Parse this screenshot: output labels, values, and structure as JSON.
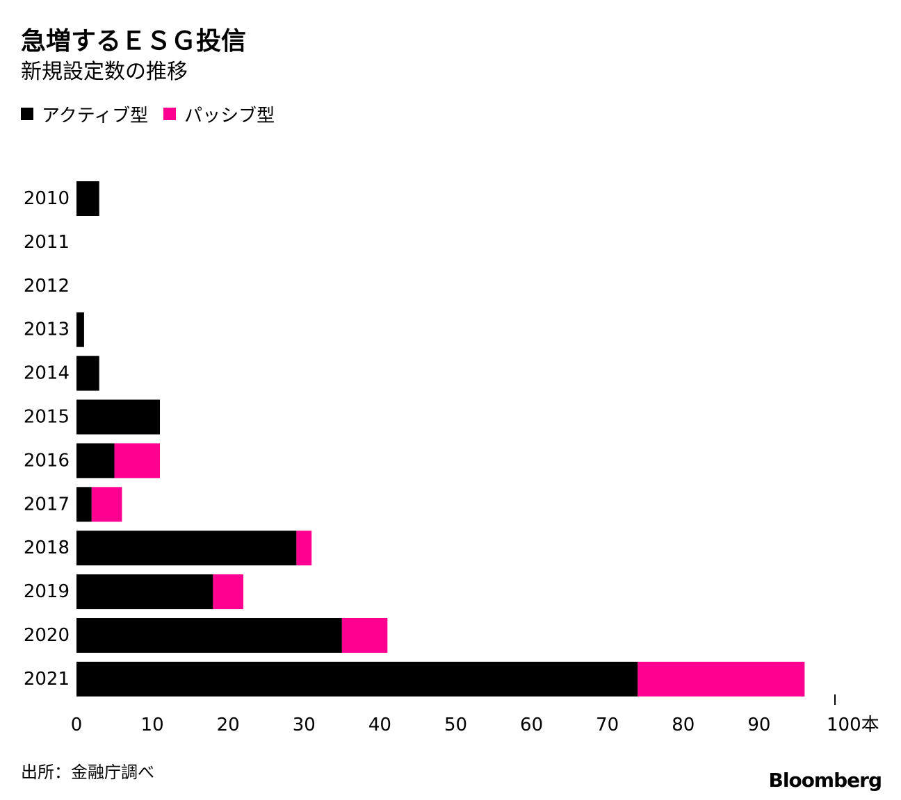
{
  "title": "急増するＥＳＧ投信",
  "subtitle": "新規設定数の推移",
  "legend": {
    "active": "アクティブ型",
    "passive": "パッシブ型"
  },
  "colors": {
    "active": "#000000",
    "passive": "#ff0090"
  },
  "source": "出所：金融庁調べ",
  "brand": "Bloomberg",
  "chart_data": {
    "type": "bar",
    "orientation": "horizontal",
    "stacked": true,
    "categories": [
      "2010",
      "2011",
      "2012",
      "2013",
      "2014",
      "2015",
      "2016",
      "2017",
      "2018",
      "2019",
      "2020",
      "2021"
    ],
    "series": [
      {
        "name": "アクティブ型",
        "values": [
          3,
          0,
          0,
          1,
          3,
          11,
          5,
          2,
          29,
          18,
          35,
          74
        ]
      },
      {
        "name": "パッシブ型",
        "values": [
          0,
          0,
          0,
          0,
          0,
          0,
          6,
          4,
          2,
          4,
          6,
          22
        ]
      }
    ],
    "xlim": [
      0,
      100
    ],
    "xticks": [
      "0",
      "10",
      "20",
      "30",
      "40",
      "50",
      "60",
      "70",
      "80",
      "90",
      "100本"
    ],
    "grid": false,
    "legend_position": "top-left"
  }
}
